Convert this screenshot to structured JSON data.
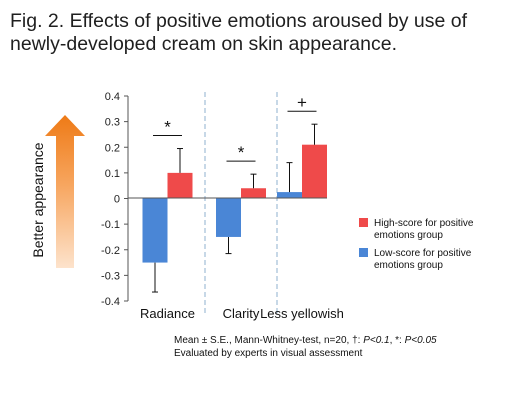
{
  "figure": {
    "title": "Fig. 2. Effects of positive emotions aroused by use of newly-developed cream on skin appearance.",
    "ylabel": "Better appearance",
    "footnote": {
      "line1_prefix": "Mean ± S.E., Mann-Whitney-test,  n=20,  †: ",
      "p1": "P<0.1",
      "sep": ",  *: ",
      "p2": "P<0.05",
      "line2": "Evaluated by experts in visual assessment"
    }
  },
  "chart_data": {
    "type": "bar",
    "categories": [
      "Radiance",
      "Clarity",
      "Less yellowish"
    ],
    "series": [
      {
        "name": "Low-score for positive emotions group",
        "color": "#4a86d6",
        "values": [
          -0.25,
          -0.15,
          0.025
        ],
        "errors": [
          0.115,
          0.065,
          0.115
        ]
      },
      {
        "name": "High-score for positive emotions group",
        "color": "#ef4a4a",
        "values": [
          0.1,
          0.04,
          0.21
        ],
        "errors": [
          0.095,
          0.055,
          0.08
        ]
      }
    ],
    "significance": [
      "*",
      "*",
      "+"
    ],
    "ylim": [
      -0.4,
      0.4
    ],
    "yticks": [
      "0.4",
      "0.3",
      "0.2",
      "0.1",
      "0",
      "-0.1",
      "-0.2",
      "-0.3",
      "-0.4"
    ],
    "legend_position": "right",
    "legend": [
      {
        "line1": "High-score for positive",
        "line2": "emotions group",
        "color": "#ef4a4a"
      },
      {
        "line1": "Low-score for positive",
        "line2": "emotions group",
        "color": "#4a86d6"
      }
    ]
  }
}
